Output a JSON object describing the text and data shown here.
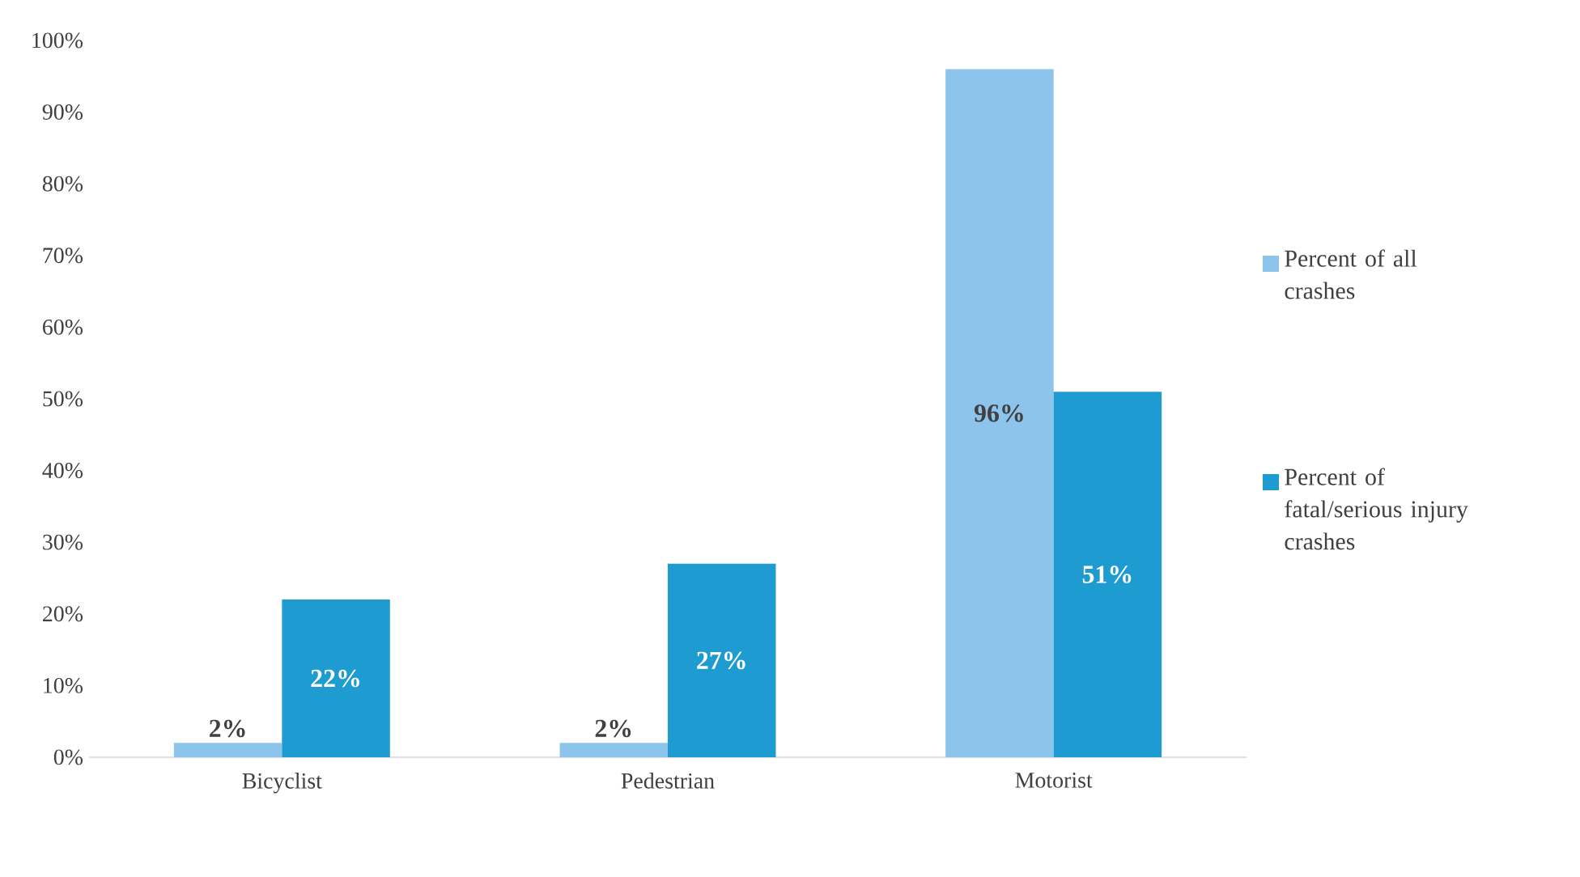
{
  "chart_data": {
    "type": "bar",
    "categories": [
      "Bicyclist",
      "Pedestrian",
      "Motorist"
    ],
    "series": [
      {
        "name": "Percent of all crashes",
        "color": "#8cc4ec",
        "values": [
          2,
          2,
          96
        ],
        "value_labels": [
          "2%",
          "2%",
          "96%"
        ]
      },
      {
        "name": "Percent of fatal/serious injury crashes",
        "color": "#1e9bd0",
        "values": [
          22,
          27,
          51
        ],
        "value_labels": [
          "22%",
          "27%",
          "51%"
        ]
      }
    ],
    "ylim": [
      0,
      100
    ],
    "yticks": [
      {
        "value": 0,
        "label": "0%"
      },
      {
        "value": 10,
        "label": "10%"
      },
      {
        "value": 20,
        "label": "20%"
      },
      {
        "value": 30,
        "label": "30%"
      },
      {
        "value": 40,
        "label": "40%"
      },
      {
        "value": 50,
        "label": "50%"
      },
      {
        "value": 60,
        "label": "60%"
      },
      {
        "value": 70,
        "label": "70%"
      },
      {
        "value": 80,
        "label": "80%"
      },
      {
        "value": 90,
        "label": "90%"
      },
      {
        "value": 100,
        "label": "100%"
      }
    ],
    "legend": "right"
  }
}
